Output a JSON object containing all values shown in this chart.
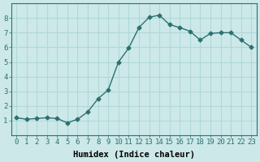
{
  "x": [
    0,
    1,
    2,
    3,
    4,
    5,
    6,
    7,
    8,
    9,
    10,
    11,
    12,
    13,
    14,
    15,
    16,
    17,
    18,
    19,
    20,
    21,
    22,
    23
  ],
  "y": [
    1.2,
    1.1,
    1.15,
    1.2,
    1.15,
    0.85,
    1.1,
    1.6,
    2.5,
    3.1,
    5.0,
    5.95,
    7.35,
    8.05,
    8.2,
    7.55,
    7.35,
    7.1,
    6.5,
    6.95,
    7.0,
    7.0,
    6.5,
    6.0
  ],
  "line_color": "#2d7070",
  "marker": "D",
  "markersize": 2.5,
  "bg_color": "#cce8e8",
  "grid_color": "#b0d8d8",
  "xlabel": "Humidex (Indice chaleur)",
  "xlim": [
    -0.5,
    23.5
  ],
  "ylim": [
    0,
    9
  ],
  "yticks": [
    1,
    2,
    3,
    4,
    5,
    6,
    7,
    8
  ],
  "xtick_labels": [
    "0",
    "1",
    "2",
    "3",
    "4",
    "5",
    "6",
    "7",
    "8",
    "9",
    "10",
    "11",
    "12",
    "13",
    "14",
    "15",
    "16",
    "17",
    "18",
    "19",
    "20",
    "21",
    "22",
    "23"
  ],
  "xlabel_fontsize": 7.5,
  "tick_fontsize": 6.5,
  "linewidth": 1.0
}
